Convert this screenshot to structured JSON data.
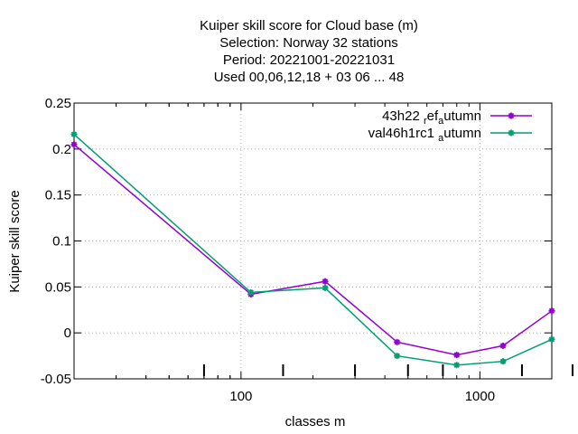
{
  "chart_data": {
    "type": "line",
    "title_lines": [
      "Kuiper skill score  for Cloud base (m)",
      "Selection: Norway     32 stations",
      "Period: 20221001-20221031",
      "Used  00,06,12,18  + 03 06 ... 48"
    ],
    "xlabel": "classes m",
    "ylabel": "Kuiper skill score",
    "x_scale": "log",
    "xlim": [
      20,
      2000
    ],
    "ylim": [
      -0.05,
      0.25
    ],
    "x_ticks": [
      100,
      1000
    ],
    "x_tick_labels": [
      "100",
      "1000"
    ],
    "y_ticks": [
      -0.05,
      0,
      0.05,
      0.1,
      0.15,
      0.2,
      0.25
    ],
    "y_tick_labels": [
      "-0.05",
      "0",
      "0.05",
      "0.1",
      "0.15",
      "0.2",
      "0.25"
    ],
    "grid": true,
    "legend_position": "top-right",
    "x": [
      20,
      110,
      225,
      450,
      800,
      1250,
      2000
    ],
    "series": [
      {
        "name": "43h22 ref autumn",
        "name_parts": {
          "a": "43h22 ",
          "b": "r",
          "c": "ef",
          "d": "a",
          "e": "utumn"
        },
        "color": "#9400d3",
        "values": [
          0.205,
          0.042,
          0.056,
          -0.01,
          -0.024,
          -0.014,
          0.024
        ]
      },
      {
        "name": "val46h1rc1 autumn",
        "name_parts": {
          "a": "val46h1rc1 ",
          "b": "",
          "c": "",
          "d": "a",
          "e": "utumn"
        },
        "color": "#009e73",
        "values": [
          0.216,
          0.044,
          0.049,
          -0.025,
          -0.035,
          -0.031,
          -0.007
        ]
      }
    ],
    "observation_marks_x": [
      70,
      150,
      300,
      500,
      700,
      1500,
      2500
    ]
  }
}
